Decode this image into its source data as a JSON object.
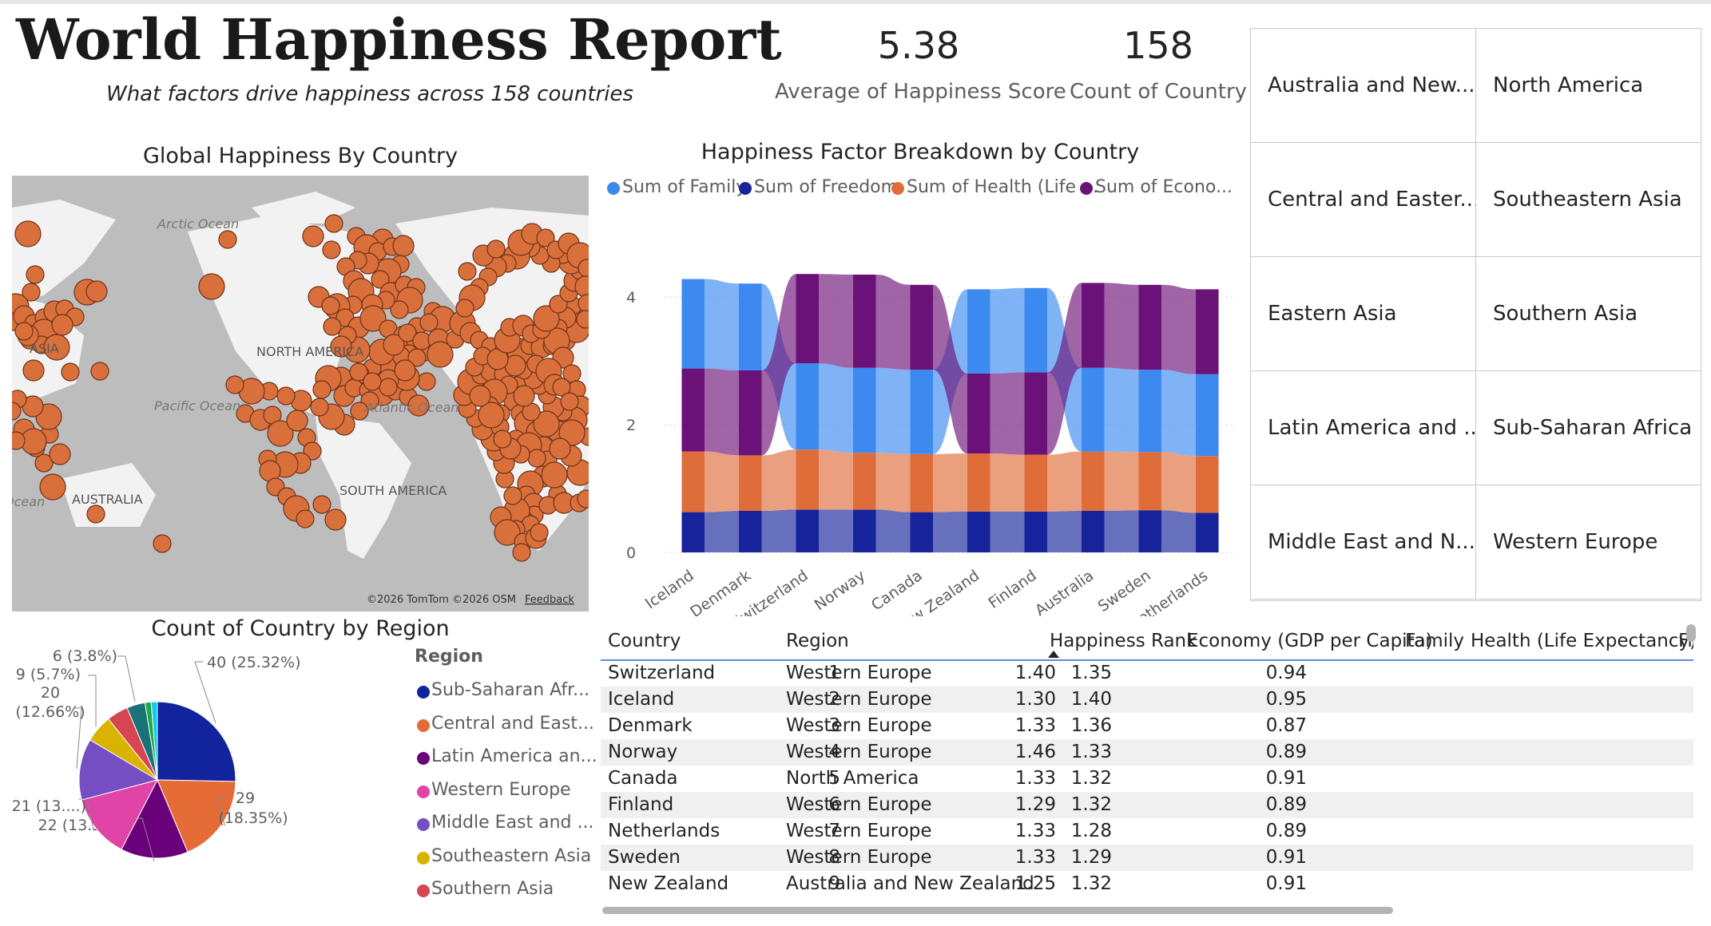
{
  "report": {
    "title": "World Happiness Report",
    "subtitle": "What factors drive happiness across 158 countries"
  },
  "kpis": [
    {
      "value": "5.38",
      "label": "Average of Happiness Score"
    },
    {
      "value": "158",
      "label": "Count of Country"
    }
  ],
  "region_slicer": {
    "items": [
      "Australia and New...",
      "North America",
      "Central and Easter...",
      "Southeastern Asia",
      "Eastern Asia",
      "Southern Asia",
      "Latin America and ...",
      "Sub-Saharan Africa",
      "Middle East and N...",
      "Western Europe"
    ]
  },
  "map": {
    "title": "Global Happiness By Country",
    "labels": {
      "arctic": "Arctic Ocean",
      "asia": "ASIA",
      "north_america": "NORTH AMERICA",
      "pacific": "Pacific Ocean",
      "atlantic": "Atlantic Ocean",
      "australia": "AUSTRALIA",
      "south_america": "SOUTH AMERICA",
      "ocean_left": "Ocean"
    },
    "attribution": "©2026 TomTom  ©2026 OSM",
    "feedback": "Feedback",
    "bubble_color": "#d9703c"
  },
  "factor_chart": {
    "title": "Happiness Factor Breakdown by Country",
    "legend": [
      {
        "label": "Sum of Family",
        "color": "#3c8af0"
      },
      {
        "label": "Sum of Freedom",
        "color": "#16239a"
      },
      {
        "label": "Sum of Health (Life ...",
        "color": "#df6d3a"
      },
      {
        "label": "Sum of Econo...",
        "color": "#6b1278"
      }
    ]
  },
  "chart_data": [
    {
      "type": "area",
      "title": "Happiness Factor Breakdown by Country",
      "categories": [
        "Iceland",
        "Denmark",
        "Switzerland",
        "Norway",
        "Canada",
        "New Zealand",
        "Finland",
        "Australia",
        "Sweden",
        "Netherlands"
      ],
      "ylim": [
        0,
        4.5
      ],
      "yticks": [
        0,
        2,
        4
      ],
      "series": [
        {
          "name": "Sum of Freedom",
          "values": [
            0.63,
            0.65,
            0.67,
            0.67,
            0.63,
            0.64,
            0.64,
            0.65,
            0.66,
            0.62
          ]
        },
        {
          "name": "Sum of Health (Life ...",
          "values": [
            0.95,
            0.87,
            0.94,
            0.89,
            0.91,
            0.91,
            0.89,
            0.93,
            0.91,
            0.89
          ]
        },
        {
          "name": "Sum of Family",
          "values": [
            1.4,
            1.36,
            1.35,
            1.33,
            1.32,
            1.32,
            1.32,
            1.31,
            1.29,
            1.28
          ]
        },
        {
          "name": "Sum of Econo...",
          "values": [
            1.3,
            1.33,
            1.4,
            1.46,
            1.33,
            1.25,
            1.29,
            1.33,
            1.33,
            1.33
          ]
        }
      ]
    },
    {
      "type": "pie",
      "title": "Count of Country by Region",
      "legend_title": "Region",
      "slices": [
        {
          "label": "Sub-Saharan Afr...",
          "value": 40,
          "data_label": "40 (25.32%)",
          "color": "#12239e"
        },
        {
          "label": "Central and East...",
          "value": 29,
          "data_label": "29 (18.35%)",
          "color": "#e66c37"
        },
        {
          "label": "Latin America an...",
          "value": 22,
          "data_label": "22 (13.92%)",
          "color": "#6b007b"
        },
        {
          "label": "Western Europe",
          "value": 21,
          "data_label": "21 (13....)",
          "color": "#e044a7"
        },
        {
          "label": "Middle East and ...",
          "value": 20,
          "data_label": "20 (12.66%)",
          "color": "#744ec2"
        },
        {
          "label": "Southeastern Asia",
          "value": 9,
          "data_label": "9 (5.7%)",
          "color": "#d9b300"
        },
        {
          "label": "Southern Asia",
          "value": 7,
          "data_label": "",
          "color": "#d64550"
        },
        {
          "label": "",
          "value": 6,
          "data_label": "6 (3.8%)",
          "color": "#197278"
        },
        {
          "label": "",
          "value": 2,
          "data_label": "",
          "color": "#1aab40"
        },
        {
          "label": "",
          "value": 2,
          "data_label": "",
          "color": "#15c6f4"
        }
      ]
    }
  ],
  "table": {
    "columns": [
      "Country",
      "Region",
      "Happiness Rank",
      "Economy (GDP per Capita)",
      "Family",
      "Health (Life Expectancy)",
      "Fre"
    ],
    "rows": [
      [
        "Switzerland",
        "Western Europe",
        "1",
        "1.40",
        "1.35",
        "0.94"
      ],
      [
        "Iceland",
        "Western Europe",
        "2",
        "1.30",
        "1.40",
        "0.95"
      ],
      [
        "Denmark",
        "Western Europe",
        "3",
        "1.33",
        "1.36",
        "0.87"
      ],
      [
        "Norway",
        "Western Europe",
        "4",
        "1.46",
        "1.33",
        "0.89"
      ],
      [
        "Canada",
        "North America",
        "5",
        "1.33",
        "1.32",
        "0.91"
      ],
      [
        "Finland",
        "Western Europe",
        "6",
        "1.29",
        "1.32",
        "0.89"
      ],
      [
        "Netherlands",
        "Western Europe",
        "7",
        "1.33",
        "1.28",
        "0.89"
      ],
      [
        "Sweden",
        "Western Europe",
        "8",
        "1.33",
        "1.29",
        "0.91"
      ],
      [
        "New Zealand",
        "Australia and New Zealand",
        "9",
        "1.25",
        "1.32",
        "0.91"
      ]
    ]
  }
}
